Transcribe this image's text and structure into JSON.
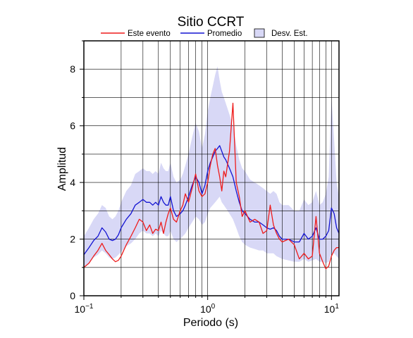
{
  "chart_data": {
    "type": "line",
    "title": "Sitio CCRT",
    "xlabel": "Periodo (s)",
    "ylabel": "Amplitud",
    "x_scale": "log",
    "xlim": [
      0.1,
      11.5
    ],
    "ylim": [
      0,
      9
    ],
    "x_major_ticks": [
      {
        "value": 0.1,
        "label": "10",
        "sup": "−1"
      },
      {
        "value": 1,
        "label": "10",
        "sup": "0"
      },
      {
        "value": 10,
        "label": "10",
        "sup": "1"
      }
    ],
    "y_major_ticks": [
      0,
      2,
      4,
      6,
      8
    ],
    "grid": true,
    "legend": {
      "placement": "top",
      "items": [
        {
          "label": "Este evento",
          "kind": "line",
          "color": "#ee1c1c"
        },
        {
          "label": "Promedio",
          "kind": "line",
          "color": "#1414d2"
        },
        {
          "label": "Desv. Est.",
          "kind": "band",
          "color": "#d8d8f6"
        }
      ]
    },
    "series": [
      {
        "name": "Este evento",
        "color": "#ee1c1c",
        "x": [
          0.1,
          0.11,
          0.12,
          0.13,
          0.14,
          0.15,
          0.16,
          0.17,
          0.18,
          0.19,
          0.2,
          0.22,
          0.24,
          0.26,
          0.28,
          0.3,
          0.32,
          0.34,
          0.36,
          0.38,
          0.4,
          0.42,
          0.44,
          0.46,
          0.48,
          0.5,
          0.53,
          0.56,
          0.6,
          0.63,
          0.66,
          0.7,
          0.75,
          0.8,
          0.85,
          0.9,
          0.95,
          1.0,
          1.05,
          1.1,
          1.15,
          1.2,
          1.25,
          1.3,
          1.35,
          1.4,
          1.5,
          1.6,
          1.7,
          1.8,
          1.9,
          2.0,
          2.2,
          2.4,
          2.6,
          2.8,
          3.0,
          3.2,
          3.4,
          3.6,
          3.8,
          4.0,
          4.5,
          5.0,
          5.5,
          6.0,
          6.5,
          7.0,
          7.5,
          8.0,
          8.5,
          9.0,
          9.5,
          10.0,
          10.5,
          11.0,
          11.5
        ],
        "y": [
          1.0,
          1.15,
          1.4,
          1.6,
          1.85,
          1.6,
          1.45,
          1.3,
          1.2,
          1.25,
          1.4,
          1.8,
          2.1,
          2.4,
          2.7,
          2.6,
          2.3,
          2.5,
          2.2,
          2.35,
          2.3,
          2.6,
          2.2,
          2.6,
          2.9,
          3.1,
          2.7,
          2.6,
          3.0,
          3.2,
          3.6,
          3.3,
          3.8,
          4.3,
          3.7,
          3.5,
          3.6,
          4.0,
          4.6,
          5.0,
          5.2,
          4.6,
          4.2,
          3.7,
          4.4,
          4.2,
          5.1,
          6.8,
          4.0,
          3.5,
          2.8,
          3.0,
          2.6,
          2.7,
          2.6,
          2.2,
          2.3,
          3.2,
          2.5,
          2.2,
          2.0,
          1.9,
          2.0,
          1.8,
          1.3,
          1.5,
          1.3,
          1.4,
          2.8,
          1.5,
          1.2,
          0.95,
          1.05,
          1.4,
          1.6,
          1.7,
          1.7
        ]
      },
      {
        "name": "Promedio",
        "color": "#1414d2",
        "x": [
          0.1,
          0.11,
          0.12,
          0.13,
          0.14,
          0.15,
          0.16,
          0.17,
          0.18,
          0.19,
          0.2,
          0.22,
          0.24,
          0.26,
          0.28,
          0.3,
          0.32,
          0.34,
          0.36,
          0.38,
          0.4,
          0.42,
          0.44,
          0.46,
          0.48,
          0.5,
          0.53,
          0.56,
          0.6,
          0.63,
          0.66,
          0.7,
          0.75,
          0.8,
          0.85,
          0.9,
          0.95,
          1.0,
          1.05,
          1.1,
          1.15,
          1.2,
          1.25,
          1.3,
          1.35,
          1.4,
          1.5,
          1.6,
          1.7,
          1.8,
          1.9,
          2.0,
          2.2,
          2.4,
          2.6,
          2.8,
          3.0,
          3.2,
          3.4,
          3.6,
          3.8,
          4.0,
          4.5,
          5.0,
          5.5,
          6.0,
          6.5,
          7.0,
          7.5,
          8.0,
          8.5,
          9.0,
          9.5,
          10.0,
          10.5,
          11.0,
          11.5
        ],
        "y": [
          1.45,
          1.7,
          1.95,
          2.1,
          2.4,
          2.25,
          2.0,
          1.95,
          2.0,
          2.15,
          2.4,
          2.7,
          2.9,
          3.2,
          3.3,
          3.4,
          3.3,
          3.3,
          3.2,
          3.3,
          3.2,
          3.5,
          3.3,
          3.2,
          3.2,
          3.5,
          3.0,
          2.8,
          2.9,
          3.0,
          3.2,
          3.5,
          3.9,
          4.2,
          4.0,
          3.6,
          3.9,
          4.4,
          4.7,
          4.9,
          5.1,
          5.2,
          5.3,
          5.1,
          4.9,
          4.8,
          4.5,
          4.2,
          3.7,
          3.3,
          3.0,
          2.9,
          2.7,
          2.6,
          2.6,
          2.5,
          2.4,
          2.35,
          2.4,
          2.3,
          2.1,
          2.0,
          2.0,
          1.9,
          1.9,
          2.2,
          2.0,
          2.1,
          2.4,
          2.0,
          2.0,
          2.1,
          2.3,
          3.1,
          2.9,
          2.4,
          2.2
        ]
      },
      {
        "name": "Desv. Est.",
        "color": "#d8d8f6",
        "x": [
          0.1,
          0.11,
          0.12,
          0.13,
          0.14,
          0.15,
          0.16,
          0.17,
          0.18,
          0.19,
          0.2,
          0.22,
          0.24,
          0.26,
          0.28,
          0.3,
          0.32,
          0.34,
          0.36,
          0.38,
          0.4,
          0.42,
          0.44,
          0.46,
          0.48,
          0.5,
          0.53,
          0.56,
          0.6,
          0.63,
          0.66,
          0.7,
          0.75,
          0.8,
          0.85,
          0.9,
          0.95,
          1.0,
          1.05,
          1.1,
          1.15,
          1.2,
          1.25,
          1.3,
          1.35,
          1.4,
          1.5,
          1.6,
          1.7,
          1.8,
          1.9,
          2.0,
          2.2,
          2.4,
          2.6,
          2.8,
          3.0,
          3.2,
          3.4,
          3.6,
          3.8,
          4.0,
          4.5,
          5.0,
          5.5,
          6.0,
          6.5,
          7.0,
          7.5,
          8.0,
          8.5,
          9.0,
          9.5,
          10.0,
          10.5,
          11.0,
          11.5
        ],
        "lower": [
          1.0,
          1.15,
          1.35,
          1.45,
          1.6,
          1.5,
          1.35,
          1.3,
          1.35,
          1.45,
          1.55,
          1.75,
          1.85,
          2.0,
          2.2,
          2.3,
          2.2,
          2.2,
          2.1,
          2.2,
          2.1,
          2.3,
          2.2,
          2.1,
          2.1,
          2.3,
          2.0,
          1.9,
          2.0,
          2.1,
          2.2,
          2.4,
          2.6,
          2.8,
          2.7,
          2.5,
          2.6,
          2.9,
          3.1,
          3.2,
          3.3,
          3.4,
          3.5,
          3.3,
          3.2,
          3.1,
          2.9,
          2.7,
          2.4,
          2.1,
          1.9,
          1.8,
          1.7,
          1.65,
          1.6,
          1.6,
          1.5,
          1.5,
          1.5,
          1.4,
          1.35,
          1.3,
          1.25,
          1.2,
          1.2,
          1.3,
          1.2,
          1.25,
          1.3,
          1.2,
          1.2,
          1.15,
          1.2,
          1.5,
          1.5,
          1.4,
          1.3
        ],
        "upper": [
          2.1,
          2.4,
          2.7,
          2.9,
          3.2,
          3.1,
          2.8,
          2.7,
          2.8,
          3.0,
          3.3,
          3.7,
          3.9,
          4.3,
          4.4,
          4.5,
          4.4,
          4.4,
          4.3,
          4.4,
          4.3,
          4.7,
          4.5,
          4.4,
          4.4,
          4.7,
          4.2,
          4.0,
          4.1,
          4.3,
          4.6,
          5.0,
          5.6,
          6.1,
          5.8,
          5.2,
          5.7,
          6.5,
          7.0,
          7.4,
          7.8,
          8.1,
          7.6,
          7.2,
          7.0,
          6.8,
          6.4,
          6.0,
          5.3,
          4.8,
          4.5,
          4.4,
          4.1,
          4.0,
          3.9,
          3.8,
          3.7,
          3.6,
          3.7,
          3.6,
          3.3,
          3.2,
          3.2,
          3.0,
          3.0,
          3.4,
          3.2,
          3.3,
          3.7,
          3.2,
          3.3,
          3.6,
          4.2,
          7.0,
          5.5,
          4.0,
          3.5
        ]
      }
    ]
  }
}
